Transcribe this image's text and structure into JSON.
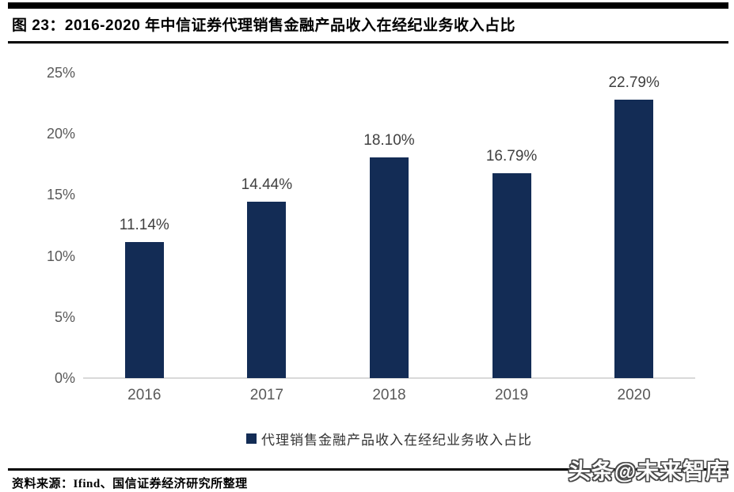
{
  "header": {
    "title": "图  23：2016-2020 年中信证券代理销售金融产品收入在经纪业务收入占比"
  },
  "chart_data": {
    "type": "bar",
    "title": "2016-2020 年中信证券代理销售金融产品收入在经纪业务收入占比",
    "categories": [
      "2016",
      "2017",
      "2018",
      "2019",
      "2020"
    ],
    "values": [
      11.14,
      14.44,
      18.1,
      16.79,
      22.79
    ],
    "data_labels": [
      "11.14%",
      "14.44%",
      "18.10%",
      "16.79%",
      "22.79%"
    ],
    "series_name": "代理销售金融产品收入在经纪业务收入占比",
    "xlabel": "",
    "ylabel": "",
    "ylim": [
      0,
      25
    ],
    "y_ticks": [
      {
        "label": "0%",
        "value": 0
      },
      {
        "label": "5%",
        "value": 5
      },
      {
        "label": "10%",
        "value": 10
      },
      {
        "label": "15%",
        "value": 15
      },
      {
        "label": "20%",
        "value": 20
      },
      {
        "label": "25%",
        "value": 25
      }
    ],
    "grid": false,
    "legend_position": "bottom",
    "colors": {
      "bar": "#132c55",
      "axis_line": "#d9d9d9",
      "tick_label": "#595959",
      "data_label": "#404040"
    }
  },
  "footer": {
    "source": "资料来源：Ifind、国信证券经济研究所整理",
    "watermark": "头条@未来智库"
  }
}
